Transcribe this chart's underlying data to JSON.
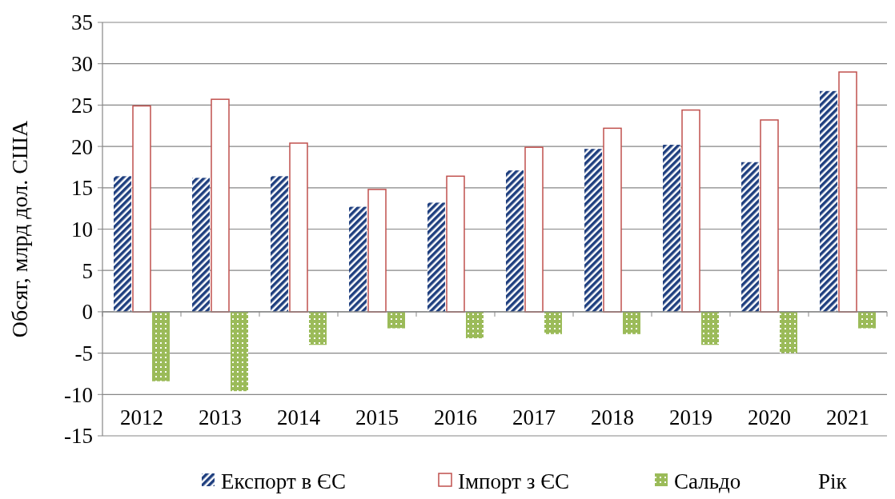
{
  "chart_data": {
    "type": "bar",
    "ylabel": "Обсяг, млрд дол. США",
    "xlabel": "Рік",
    "categories": [
      "2012",
      "2013",
      "2014",
      "2015",
      "2016",
      "2017",
      "2018",
      "2019",
      "2020",
      "2021"
    ],
    "series": [
      {
        "name": "Експорт в ЄС",
        "color": "#1f3f7f",
        "values": [
          16.4,
          16.2,
          16.4,
          12.7,
          13.2,
          17.1,
          19.7,
          20.2,
          18.1,
          26.7
        ]
      },
      {
        "name": "Імпорт з ЄС",
        "color": "#c0504d",
        "values": [
          24.9,
          25.7,
          20.4,
          14.8,
          16.4,
          19.9,
          22.2,
          24.4,
          23.2,
          29.0
        ]
      },
      {
        "name": "Сальдо",
        "color": "#9bbb59",
        "values": [
          -8.4,
          -9.6,
          -4.0,
          -2.0,
          -3.2,
          -2.7,
          -2.7,
          -4.0,
          -5.0,
          -2.0
        ]
      }
    ],
    "ylim": [
      -15,
      35
    ],
    "yticks": [
      -15,
      -10,
      -5,
      0,
      5,
      10,
      15,
      20,
      25,
      30,
      35
    ],
    "grid": "y",
    "legend": "bottom"
  }
}
